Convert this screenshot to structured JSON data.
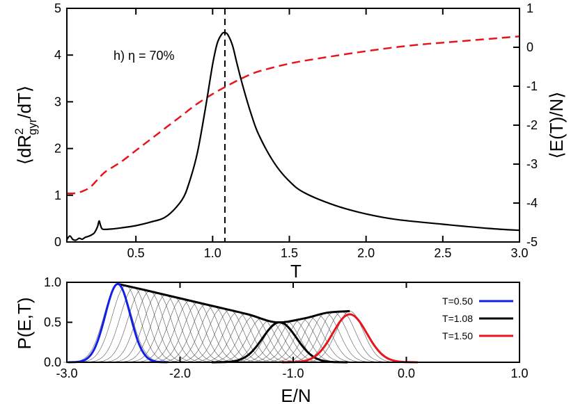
{
  "chart_data": [
    {
      "type": "line",
      "panel": "top",
      "xlabel": "T",
      "ylabel_left": "⟨dR²gyr/dT⟩",
      "ylabel_left_parts": {
        "open": "⟨dR",
        "sup": "2",
        "sub": "gyr",
        "close": "/dT⟩"
      },
      "ylabel_right": "⟨E(T)/N⟩",
      "xlim": [
        0.05,
        3.0
      ],
      "ylim_left": [
        0,
        5
      ],
      "ylim_right": [
        -5,
        1
      ],
      "x_ticks": [
        {
          "value": 0.5,
          "label": "0.5"
        },
        {
          "value": 1.0,
          "label": "1.0"
        },
        {
          "value": 1.5,
          "label": "1.5"
        },
        {
          "value": 2.0,
          "label": "2.0"
        },
        {
          "value": 2.5,
          "label": "2.5"
        },
        {
          "value": 3.0,
          "label": "3.0"
        }
      ],
      "y_left_ticks": [
        {
          "value": 0,
          "label": "0"
        },
        {
          "value": 1,
          "label": "1"
        },
        {
          "value": 2,
          "label": "2"
        },
        {
          "value": 3,
          "label": "3"
        },
        {
          "value": 4,
          "label": "4"
        },
        {
          "value": 5,
          "label": "5"
        }
      ],
      "y_right_ticks": [
        {
          "value": -5,
          "label": "-5"
        },
        {
          "value": -4,
          "label": "-4"
        },
        {
          "value": -3,
          "label": "-3"
        },
        {
          "value": -2,
          "label": "-2"
        },
        {
          "value": -1,
          "label": "-1"
        },
        {
          "value": 0,
          "label": "0"
        },
        {
          "value": 1,
          "label": "1"
        }
      ],
      "annotation": "h) η = 70%",
      "vline_x": 1.08,
      "series": [
        {
          "axis": "left",
          "color": "#000000",
          "style": "solid",
          "x": [
            0.05,
            0.07,
            0.09,
            0.11,
            0.13,
            0.15,
            0.17,
            0.19,
            0.21,
            0.23,
            0.25,
            0.26,
            0.27,
            0.28,
            0.3,
            0.35,
            0.4,
            0.5,
            0.6,
            0.7,
            0.8,
            0.85,
            0.9,
            0.95,
            1.0,
            1.03,
            1.06,
            1.08,
            1.1,
            1.13,
            1.16,
            1.2,
            1.25,
            1.3,
            1.4,
            1.5,
            1.6,
            1.8,
            2.0,
            2.2,
            2.5,
            2.8,
            3.0
          ],
          "y": [
            0.05,
            0.13,
            0.05,
            0.04,
            0.08,
            0.06,
            0.1,
            0.12,
            0.15,
            0.2,
            0.33,
            0.45,
            0.35,
            0.28,
            0.27,
            0.28,
            0.3,
            0.35,
            0.43,
            0.55,
            0.9,
            1.3,
            1.9,
            2.8,
            3.8,
            4.25,
            4.45,
            4.48,
            4.43,
            4.2,
            3.8,
            3.3,
            2.75,
            2.3,
            1.7,
            1.3,
            1.05,
            0.78,
            0.6,
            0.48,
            0.38,
            0.29,
            0.25
          ]
        },
        {
          "axis": "right",
          "color": "#e8141c",
          "style": "dashed",
          "x": [
            0.05,
            0.1,
            0.15,
            0.2,
            0.25,
            0.3,
            0.4,
            0.5,
            0.6,
            0.7,
            0.8,
            0.9,
            1.0,
            1.1,
            1.2,
            1.3,
            1.5,
            1.7,
            2.0,
            2.3,
            2.6,
            3.0
          ],
          "y": [
            -3.75,
            -3.75,
            -3.7,
            -3.6,
            -3.4,
            -3.2,
            -2.95,
            -2.65,
            -2.35,
            -2.05,
            -1.75,
            -1.45,
            -1.2,
            -0.98,
            -0.78,
            -0.62,
            -0.42,
            -0.28,
            -0.1,
            0.05,
            0.15,
            0.28
          ]
        }
      ]
    },
    {
      "type": "line",
      "panel": "bottom",
      "xlabel": "E/N",
      "ylabel": "P(E,T)",
      "xlim": [
        -3.0,
        1.0
      ],
      "ylim": [
        0,
        1.0
      ],
      "x_ticks": [
        {
          "value": -3.0,
          "label": "-3.0"
        },
        {
          "value": -2.0,
          "label": "-2.0"
        },
        {
          "value": -1.0,
          "label": "-1.0"
        },
        {
          "value": 0.0,
          "label": "0.0"
        },
        {
          "value": 1.0,
          "label": "1.0"
        }
      ],
      "y_ticks": [
        {
          "value": 0.0,
          "label": "0.0"
        },
        {
          "value": 0.5,
          "label": "0.5"
        },
        {
          "value": 1.0,
          "label": "1.0"
        }
      ],
      "legend_position": "top-right",
      "envelope": {
        "x": [
          -2.55,
          -2.3,
          -2.0,
          -1.7,
          -1.4,
          -1.15,
          -0.9,
          -0.7,
          -0.5
        ],
        "y": [
          0.98,
          0.9,
          0.8,
          0.7,
          0.6,
          0.5,
          0.55,
          0.62,
          0.64
        ]
      },
      "family": {
        "mu_start": -2.55,
        "mu_end": -0.5,
        "count": 30,
        "sigma": 0.12
      },
      "series": [
        {
          "name": "T=0.50",
          "color": "#1020e8",
          "mu": -2.55,
          "sigma": 0.11,
          "peak": 0.98
        },
        {
          "name": "T=1.08",
          "color": "#000000",
          "mu": -1.12,
          "sigma": 0.15,
          "peak": 0.5
        },
        {
          "name": "T=1.50",
          "color": "#e8141c",
          "mu": -0.5,
          "sigma": 0.15,
          "peak": 0.6
        }
      ]
    }
  ]
}
